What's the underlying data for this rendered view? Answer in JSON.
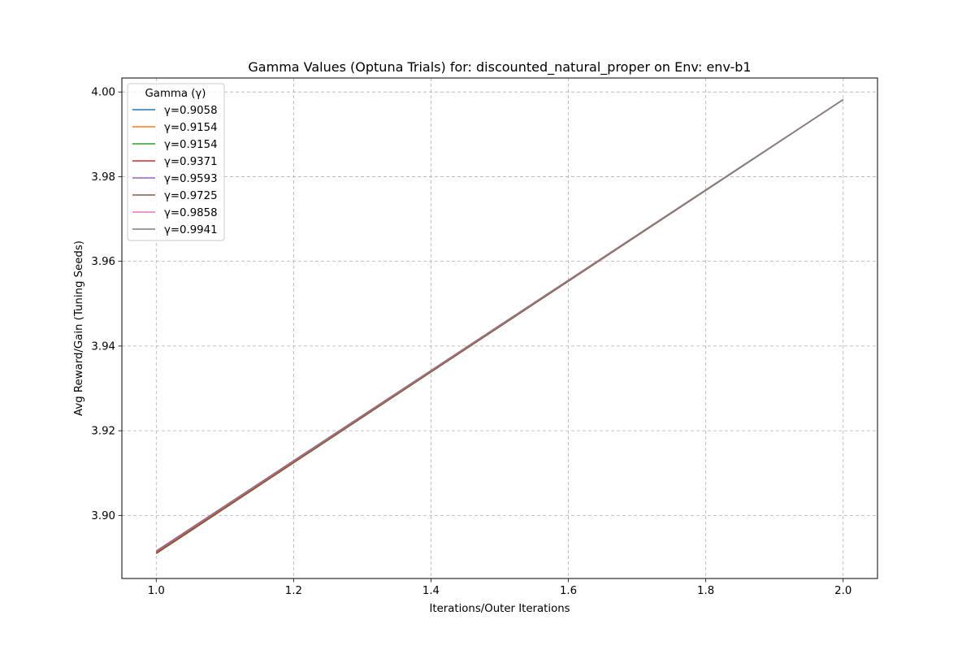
{
  "chart_data": {
    "type": "line",
    "title": "Gamma Values (Optuna Trials) for: discounted_natural_proper on Env: env-b1",
    "xlabel": "Iterations/Outer Iterations",
    "ylabel": "Avg Reward/Gain (Tuning Seeds)",
    "xlim": [
      0.95,
      2.05
    ],
    "ylim": [
      3.8851,
      4.0033
    ],
    "x_ticks": [
      1.0,
      1.2,
      1.4,
      1.6,
      1.8,
      2.0
    ],
    "x_tick_labels": [
      "1.0",
      "1.2",
      "1.4",
      "1.6",
      "1.8",
      "2.0"
    ],
    "y_ticks": [
      3.9,
      3.92,
      3.94,
      3.96,
      3.98,
      4.0
    ],
    "y_tick_labels": [
      "3.90",
      "3.92",
      "3.94",
      "3.96",
      "3.98",
      "4.00"
    ],
    "grid": true,
    "legend": {
      "title": "Gamma (γ)",
      "position": "top-left"
    },
    "x": [
      1.0,
      2.0
    ],
    "series": [
      {
        "name": "γ=0.9058",
        "values": [
          3.891,
          3.9982
        ],
        "color": "#1f77b4"
      },
      {
        "name": "γ=0.9154",
        "values": [
          3.891,
          3.9982
        ],
        "color": "#ff7f0e"
      },
      {
        "name": "γ=0.9154",
        "values": [
          3.891,
          3.9982
        ],
        "color": "#2ca02c"
      },
      {
        "name": "γ=0.9371",
        "values": [
          3.8911,
          3.9982
        ],
        "color": "#d62728"
      },
      {
        "name": "γ=0.9593",
        "values": [
          3.8916,
          3.9982
        ],
        "color": "#9467bd"
      },
      {
        "name": "γ=0.9725",
        "values": [
          3.8915,
          3.9982
        ],
        "color": "#8c564b"
      },
      {
        "name": "γ=0.9858",
        "values": [
          3.8914,
          3.9982
        ],
        "color": "#e377c2"
      },
      {
        "name": "γ=0.9941",
        "values": [
          3.8914,
          3.9982
        ],
        "color": "#7f7f7f"
      }
    ]
  }
}
